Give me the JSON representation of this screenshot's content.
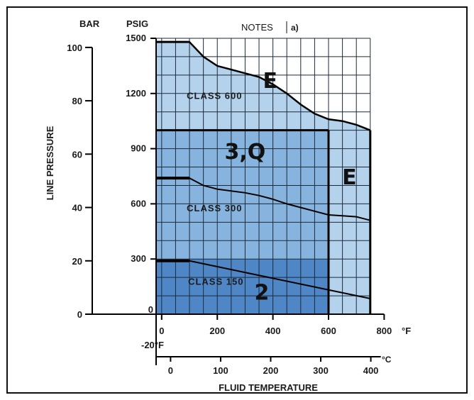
{
  "chart_data": {
    "type": "area",
    "title": "",
    "notes_label": "NOTES",
    "notes_ref": "a)",
    "ylabel": "LINE PRESSURE",
    "xlabel": "FLUID TEMPERATURE",
    "y_unit_left": "BAR",
    "y_unit_right": "PSIG",
    "x_unit_f": "°F",
    "x_unit_c": "°C",
    "x_min_label": "-20°F",
    "x_range_f": [
      -20,
      750
    ],
    "y_range_psig": [
      0,
      1500
    ],
    "x_ticks_f": [
      "0",
      "200",
      "400",
      "600",
      "800"
    ],
    "x_ticks_c": [
      "0",
      "100",
      "200",
      "300",
      "400"
    ],
    "y_ticks_psig": [
      "0",
      "300",
      "600",
      "900",
      "1200",
      "1500"
    ],
    "y_ticks_bar": [
      "0",
      "20",
      "40",
      "60",
      "80",
      "100"
    ],
    "grid": true,
    "series": [
      {
        "name": "CLASS 600",
        "points": [
          [
            -20,
            1480
          ],
          [
            100,
            1480
          ],
          [
            150,
            1400
          ],
          [
            200,
            1350
          ],
          [
            250,
            1330
          ],
          [
            300,
            1310
          ],
          [
            350,
            1290
          ],
          [
            400,
            1250
          ],
          [
            450,
            1200
          ],
          [
            500,
            1140
          ],
          [
            550,
            1090
          ],
          [
            600,
            1060
          ],
          [
            650,
            1050
          ],
          [
            700,
            1030
          ],
          [
            750,
            1000
          ]
        ]
      },
      {
        "name": "CLASS 300",
        "points": [
          [
            -20,
            740
          ],
          [
            100,
            740
          ],
          [
            150,
            700
          ],
          [
            200,
            680
          ],
          [
            250,
            670
          ],
          [
            300,
            660
          ],
          [
            350,
            645
          ],
          [
            400,
            625
          ],
          [
            450,
            600
          ],
          [
            500,
            580
          ],
          [
            550,
            560
          ],
          [
            600,
            540
          ],
          [
            650,
            535
          ],
          [
            700,
            530
          ],
          [
            750,
            510
          ]
        ]
      },
      {
        "name": "CLASS 150",
        "points": [
          [
            -20,
            290
          ],
          [
            100,
            290
          ],
          [
            750,
            85
          ]
        ]
      }
    ],
    "region_labels": [
      {
        "text": "E",
        "x": 390,
        "y": 1230
      },
      {
        "text": "3,Q",
        "x": 300,
        "y": 845
      },
      {
        "text": "E",
        "x": 675,
        "y": 705
      },
      {
        "text": "2",
        "x": 360,
        "y": 80
      },
      {
        "text": "CLASS 600",
        "x": 90,
        "y": 1170
      },
      {
        "text": "CLASS 300",
        "x": 90,
        "y": 560
      },
      {
        "text": "CLASS 150",
        "x": 95,
        "y": 160
      }
    ],
    "regions": [
      {
        "from_x": -20,
        "to_x": 750,
        "top": "CLASS 600",
        "color": "#b4d2ec"
      },
      {
        "from_x": -20,
        "to_x": 600,
        "top_value": 1000,
        "color": "#87b4de"
      },
      {
        "from_x": -20,
        "to_x": 600,
        "top_value": 300,
        "color": "#4f86c6"
      }
    ],
    "class600_boundary_psig": 1000
  }
}
